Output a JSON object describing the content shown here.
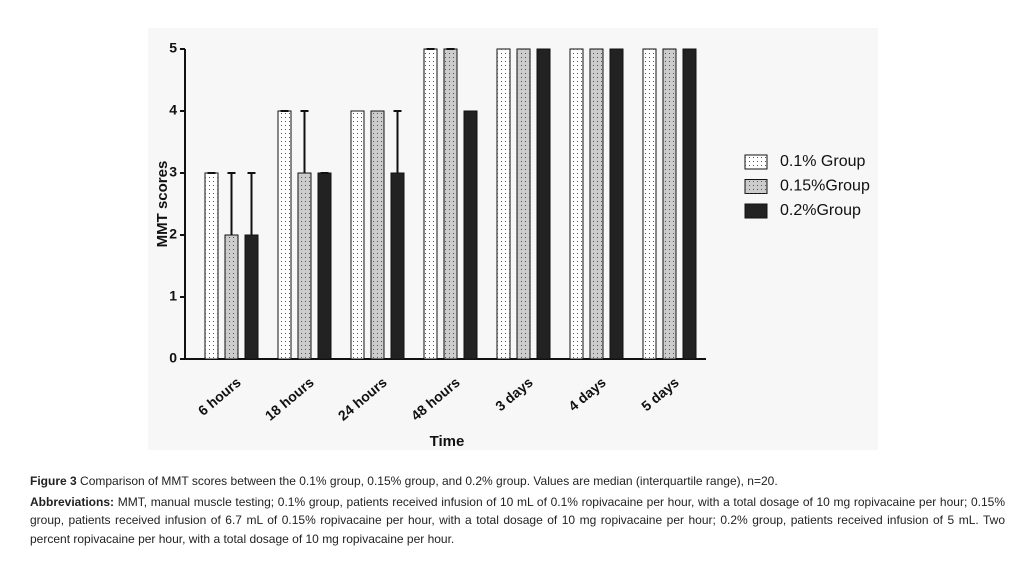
{
  "chart_data": {
    "type": "bar",
    "ylabel": "MMT scores",
    "xlabel": "Time",
    "categories": [
      "6 hours",
      "18 hours",
      "24 hours",
      "48 hours",
      "3 days",
      "4 days",
      "5 days"
    ],
    "series": [
      {
        "name": "0.1% Group",
        "color": "#ffffff",
        "pattern": "dotted",
        "values": [
          3,
          4,
          4,
          5,
          5,
          5,
          5
        ],
        "errors": [
          0,
          0,
          null,
          0,
          null,
          null,
          null
        ]
      },
      {
        "name": "0.15%Group",
        "color": "#cccccc",
        "pattern": "dotted",
        "values": [
          2,
          3,
          4,
          5,
          5,
          5,
          5
        ],
        "errors": [
          1,
          1,
          null,
          0,
          null,
          null,
          null
        ]
      },
      {
        "name": "0.2%Group",
        "color": "#222222",
        "values": [
          2,
          3,
          3,
          4,
          5,
          5,
          5
        ],
        "errors": [
          1,
          0,
          1,
          null,
          null,
          null,
          null
        ]
      }
    ],
    "ylim": [
      0,
      5
    ],
    "yticks": [
      0,
      1,
      2,
      3,
      4,
      5
    ],
    "grid": false,
    "legend": "right"
  },
  "caption": {
    "label": "Figure 3",
    "text": "Comparison of MMT scores between the 0.1% group, 0.15% group, and 0.2% group. Values are median (interquartile range), n=20.",
    "abbreviations_label": "Abbreviations:",
    "abbreviations_text": "MMT, manual muscle testing; 0.1% group, patients received infusion of 10 mL of 0.1% ropivacaine per hour, with a total dosage of 10 mg ropivacaine per hour; 0.15% group, patients received infusion of 6.7 mL of 0.15% ropivacaine per hour, with a total dosage of 10 mg ropivacaine per hour; 0.2% group, patients received infusion of 5 mL. Two percent ropivacaine per hour, with a total dosage of 10 mg ropivacaine per hour."
  }
}
